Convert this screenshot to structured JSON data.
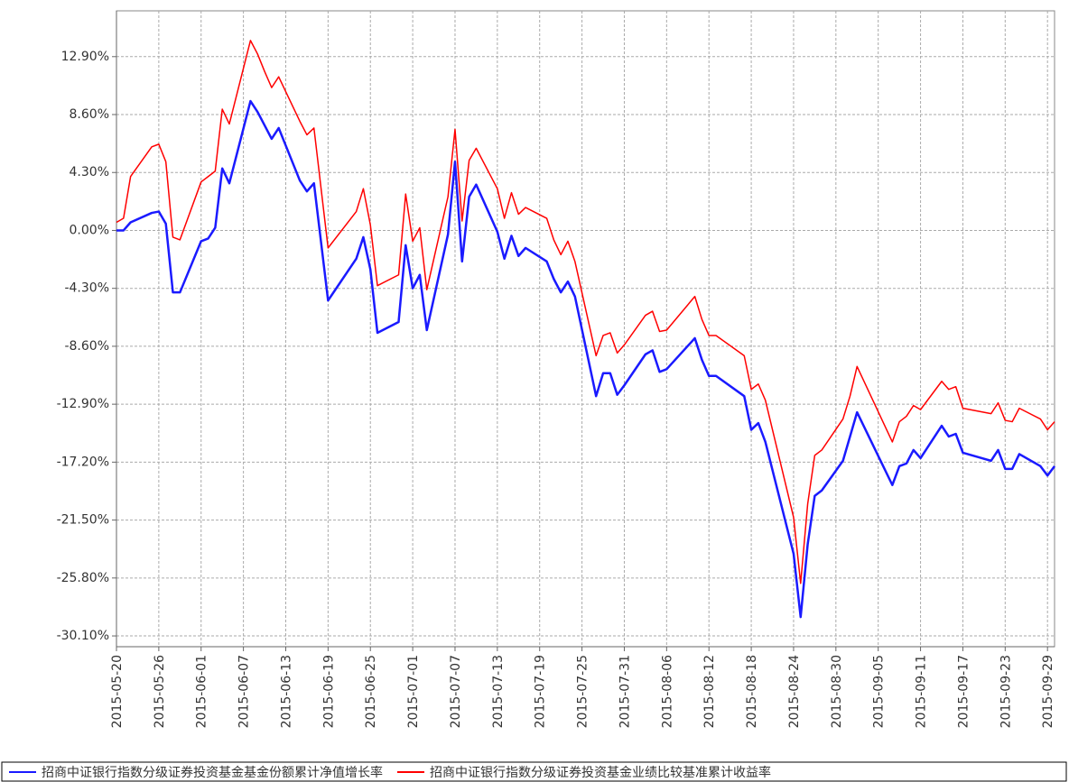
{
  "chart_data": {
    "type": "line",
    "x": [
      "2015-05-20",
      "2015-05-21",
      "2015-05-22",
      "2015-05-25",
      "2015-05-26",
      "2015-05-27",
      "2015-05-28",
      "2015-05-29",
      "2015-06-01",
      "2015-06-02",
      "2015-06-03",
      "2015-06-04",
      "2015-06-05",
      "2015-06-08",
      "2015-06-09",
      "2015-06-10",
      "2015-06-11",
      "2015-06-12",
      "2015-06-15",
      "2015-06-16",
      "2015-06-17",
      "2015-06-19",
      "2015-06-23",
      "2015-06-24",
      "2015-06-25",
      "2015-06-26",
      "2015-06-29",
      "2015-06-30",
      "2015-07-01",
      "2015-07-02",
      "2015-07-03",
      "2015-07-06",
      "2015-07-07",
      "2015-07-08",
      "2015-07-09",
      "2015-07-10",
      "2015-07-13",
      "2015-07-14",
      "2015-07-15",
      "2015-07-16",
      "2015-07-17",
      "2015-07-20",
      "2015-07-21",
      "2015-07-22",
      "2015-07-23",
      "2015-07-24",
      "2015-07-27",
      "2015-07-28",
      "2015-07-29",
      "2015-07-30",
      "2015-07-31",
      "2015-08-03",
      "2015-08-04",
      "2015-08-05",
      "2015-08-06",
      "2015-08-10",
      "2015-08-11",
      "2015-08-12",
      "2015-08-13",
      "2015-08-17",
      "2015-08-18",
      "2015-08-19",
      "2015-08-20",
      "2015-08-24",
      "2015-08-25",
      "2015-08-26",
      "2015-08-27",
      "2015-08-28",
      "2015-08-31",
      "2015-09-01",
      "2015-09-02",
      "2015-09-07",
      "2015-09-08",
      "2015-09-09",
      "2015-09-10",
      "2015-09-11",
      "2015-09-14",
      "2015-09-15",
      "2015-09-16",
      "2015-09-17",
      "2015-09-21",
      "2015-09-22",
      "2015-09-23",
      "2015-09-24",
      "2015-09-25",
      "2015-09-28",
      "2015-09-29",
      "2015-09-30"
    ],
    "series": [
      {
        "name": "招商中证银行指数分级证券投资基金基金份额累计净值增长率",
        "color": "#1a1aff",
        "values": [
          0.0,
          0.0,
          0.6,
          1.3,
          1.4,
          0.5,
          -4.6,
          -4.6,
          -0.8,
          -0.6,
          0.2,
          4.6,
          3.5,
          9.6,
          8.8,
          7.8,
          6.8,
          7.6,
          3.7,
          2.9,
          3.5,
          -5.2,
          -2.1,
          -0.5,
          -2.9,
          -7.6,
          -6.8,
          -1.1,
          -4.3,
          -3.3,
          -7.4,
          -0.3,
          5.1,
          -2.3,
          2.5,
          3.4,
          -0.1,
          -2.1,
          -0.4,
          -1.9,
          -1.3,
          -2.3,
          -3.6,
          -4.6,
          -3.8,
          -4.9,
          -12.3,
          -10.6,
          -10.6,
          -12.2,
          -11.5,
          -9.2,
          -8.9,
          -10.5,
          -10.3,
          -8.0,
          -9.6,
          -10.8,
          -10.8,
          -12.3,
          -14.8,
          -14.3,
          -15.7,
          -24.0,
          -28.7,
          -23.3,
          -19.7,
          -19.3,
          -17.1,
          -15.3,
          -13.5,
          -18.9,
          -17.5,
          -17.3,
          -16.3,
          -16.9,
          -14.5,
          -15.3,
          -15.1,
          -16.5,
          -17.1,
          -16.3,
          -17.7,
          -17.7,
          -16.6,
          -17.5,
          -18.2,
          -17.5
        ]
      },
      {
        "name": "招商中证银行指数分级证券投资基金业绩比较基准累计收益率",
        "color": "#ff0000",
        "values": [
          0.6,
          0.9,
          4.0,
          6.2,
          6.4,
          5.1,
          -0.5,
          -0.7,
          3.6,
          4.0,
          4.4,
          9.0,
          7.9,
          14.1,
          13.1,
          11.8,
          10.6,
          11.4,
          8.1,
          7.1,
          7.6,
          -1.3,
          1.4,
          3.1,
          0.4,
          -4.1,
          -3.3,
          2.7,
          -0.8,
          0.2,
          -4.4,
          2.5,
          7.5,
          0.7,
          5.2,
          6.1,
          3.1,
          0.9,
          2.8,
          1.2,
          1.7,
          0.9,
          -0.7,
          -1.8,
          -0.8,
          -2.3,
          -9.3,
          -7.8,
          -7.6,
          -9.1,
          -8.5,
          -6.3,
          -6.0,
          -7.5,
          -7.4,
          -4.9,
          -6.6,
          -7.8,
          -7.8,
          -9.3,
          -11.8,
          -11.4,
          -12.6,
          -21.3,
          -26.2,
          -20.3,
          -16.7,
          -16.3,
          -14.0,
          -12.3,
          -10.1,
          -15.7,
          -14.2,
          -13.8,
          -13.0,
          -13.3,
          -11.2,
          -11.8,
          -11.6,
          -13.2,
          -13.6,
          -12.8,
          -14.1,
          -14.2,
          -13.2,
          -14.0,
          -14.8,
          -14.2
        ]
      }
    ],
    "xlim": [
      "2015-05-20",
      "2015-09-30"
    ],
    "xticks": [
      "2015-05-20",
      "2015-05-26",
      "2015-06-01",
      "2015-06-07",
      "2015-06-13",
      "2015-06-19",
      "2015-06-25",
      "2015-07-01",
      "2015-07-07",
      "2015-07-13",
      "2015-07-19",
      "2015-07-25",
      "2015-07-31",
      "2015-08-06",
      "2015-08-12",
      "2015-08-18",
      "2015-08-24",
      "2015-08-30",
      "2015-09-05",
      "2015-09-11",
      "2015-09-17",
      "2015-09-23",
      "2015-09-29"
    ],
    "ylim": [
      -30.9,
      16.3
    ],
    "yticks": [
      {
        "value": 12.9,
        "label": "12.90%"
      },
      {
        "value": 8.6,
        "label": "8.60%"
      },
      {
        "value": 4.3,
        "label": "4.30%"
      },
      {
        "value": 0,
        "label": "0.00%"
      },
      {
        "value": -4.3,
        "label": "-4.30%"
      },
      {
        "value": -8.6,
        "label": "-8.60%"
      },
      {
        "value": -12.9,
        "label": "-12.90%"
      },
      {
        "value": -17.2,
        "label": "-17.20%"
      },
      {
        "value": -21.5,
        "label": "-21.50%"
      },
      {
        "value": -25.8,
        "label": "-25.80%"
      },
      {
        "value": -30.1,
        "label": "-30.10%"
      }
    ],
    "grid": true
  }
}
